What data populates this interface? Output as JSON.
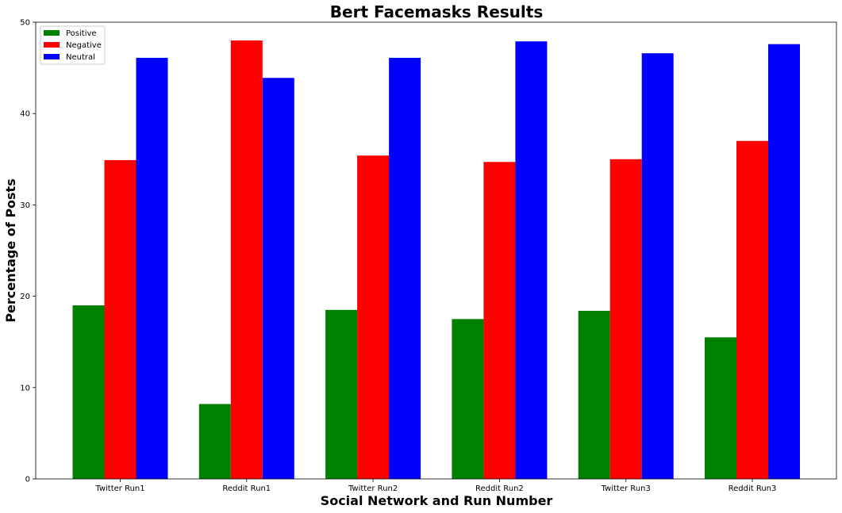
{
  "chart_data": {
    "type": "bar",
    "title": "Bert Facemasks Results",
    "xlabel": "Social Network and Run Number",
    "ylabel": "Percentage of Posts",
    "categories": [
      "Twitter Run1",
      "Reddit Run1",
      "Twitter Run2",
      "Reddit Run2",
      "Twitter Run3",
      "Reddit Run3"
    ],
    "series": [
      {
        "name": "Positive",
        "color": "#008000",
        "values": [
          19.0,
          8.2,
          18.5,
          17.5,
          18.4,
          15.5
        ]
      },
      {
        "name": "Negative",
        "color": "#ff0000",
        "values": [
          34.9,
          48.0,
          35.4,
          34.7,
          35.0,
          37.0
        ]
      },
      {
        "name": "Neutral",
        "color": "#0000ff",
        "values": [
          46.1,
          43.9,
          46.1,
          47.9,
          46.6,
          47.6
        ]
      }
    ],
    "ylim": [
      0,
      50
    ],
    "yticks": [
      0,
      10,
      20,
      30,
      40,
      50
    ],
    "grid": false,
    "legend_position": "top-left"
  }
}
